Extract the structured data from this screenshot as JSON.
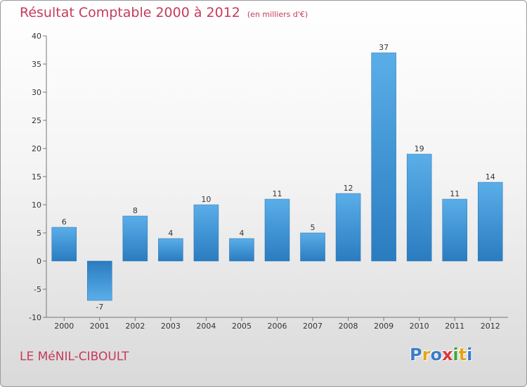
{
  "header": {
    "title": "Résultat Comptable 2000 à 2012",
    "subtitle": "(en milliers d'€)"
  },
  "footer": {
    "commune": "LE MéNIL-CIBOULT",
    "logo_letters": [
      {
        "char": "P",
        "color": "#3a7dc9"
      },
      {
        "char": "r",
        "color": "#e8a21a"
      },
      {
        "char": "o",
        "color": "#3a7dc9"
      },
      {
        "char": "x",
        "color": "#d93a3a"
      },
      {
        "char": "i",
        "color": "#3aa83a"
      },
      {
        "char": "t",
        "color": "#e8a21a"
      },
      {
        "char": "i",
        "color": "#3a7dc9"
      }
    ]
  },
  "chart_data": {
    "type": "bar",
    "title": "Résultat Comptable 2000 à 2012",
    "subtitle": "(en milliers d'€)",
    "xlabel": "",
    "ylabel": "",
    "categories": [
      "2000",
      "2001",
      "2002",
      "2003",
      "2004",
      "2005",
      "2006",
      "2007",
      "2008",
      "2009",
      "2010",
      "2011",
      "2012"
    ],
    "values": [
      6,
      -7,
      8,
      4,
      10,
      4,
      11,
      5,
      12,
      37,
      19,
      11,
      14
    ],
    "ylim": [
      -10,
      40
    ],
    "yticks": [
      -10,
      -5,
      0,
      5,
      10,
      15,
      20,
      25,
      30,
      35,
      40
    ],
    "grid": false,
    "bar_color": "#3a8fd4"
  }
}
